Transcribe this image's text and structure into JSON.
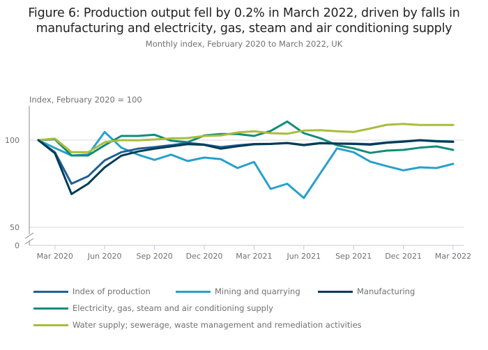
{
  "header": {
    "title_line1": "Figure 6: Production output fell by 0.2% in March 2022, driven by falls in",
    "title_line2": "manufacturing and electricity, gas, steam and air conditioning supply",
    "subtitle": "Monthly index, February 2020 to March 2022, UK"
  },
  "chart_data": {
    "type": "line",
    "title": "Figure 6: Production output fell by 0.2% in March 2022, driven by falls in manufacturing and electricity, gas, steam and air conditioning supply",
    "subtitle": "Monthly index, February 2020 to March 2022, UK",
    "ylabel": "Index, February 2020 = 100",
    "xlabel": "",
    "ylim": [
      0,
      120
    ],
    "y_axis_break": [
      0,
      50
    ],
    "yticks": [
      0,
      50,
      100
    ],
    "ytick_labels": [
      "0",
      "50",
      "100"
    ],
    "grid": true,
    "legend_position": "bottom",
    "x": [
      "Feb 2020",
      "Mar 2020",
      "Apr 2020",
      "May 2020",
      "Jun 2020",
      "Jul 2020",
      "Aug 2020",
      "Sep 2020",
      "Oct 2020",
      "Nov 2020",
      "Dec 2020",
      "Jan 2021",
      "Feb 2021",
      "Mar 2021",
      "Apr 2021",
      "May 2021",
      "Jun 2021",
      "Jul 2021",
      "Aug 2021",
      "Sep 2021",
      "Oct 2021",
      "Nov 2021",
      "Dec 2021",
      "Jan 2022",
      "Feb 2022",
      "Mar 2022"
    ],
    "xtick_labels": [
      "Mar 2020",
      "Jun 2020",
      "Sep 2020",
      "Dec 2020",
      "Mar 2021",
      "Jun 2021",
      "Sep 2021",
      "Dec 2021",
      "Mar 2022"
    ],
    "xtick_indices": [
      1,
      4,
      7,
      10,
      13,
      16,
      19,
      22,
      25
    ],
    "series": [
      {
        "name": "Index of production",
        "color": "#206095",
        "values": [
          100,
          93.0,
          75.0,
          79.3,
          88.4,
          93.1,
          95.1,
          96.0,
          97.1,
          98.4,
          97.5,
          96.0,
          97.0,
          97.8,
          97.9,
          98.4,
          97.3,
          98.4,
          98.1,
          98.0,
          97.7,
          98.7,
          99.3,
          100.0,
          99.5,
          99.2
        ]
      },
      {
        "name": "Mining and quarrying",
        "color": "#27a0cc",
        "values": [
          100,
          95.5,
          91.2,
          91.7,
          104.7,
          95.7,
          91.7,
          88.7,
          91.7,
          88.0,
          90.0,
          89.1,
          84.0,
          87.5,
          72.0,
          75.0,
          66.8,
          81.1,
          95.3,
          93.1,
          87.7,
          85.1,
          82.7,
          84.4,
          84.0,
          86.4
        ]
      },
      {
        "name": "Manufacturing",
        "color": "#003c57",
        "values": [
          100,
          92.5,
          69.1,
          75.0,
          84.4,
          91.1,
          93.5,
          95.1,
          96.4,
          97.7,
          97.3,
          95.1,
          96.5,
          97.6,
          97.8,
          98.3,
          97.1,
          98.2,
          98.0,
          97.8,
          97.4,
          98.5,
          99.1,
          99.9,
          99.3,
          99.0
        ]
      },
      {
        "name": "Electricity, gas, steam and air conditioning supply",
        "color": "#118c7b",
        "values": [
          100,
          100.5,
          91.2,
          91.2,
          97.1,
          102.4,
          102.4,
          103.1,
          99.7,
          98.8,
          102.7,
          103.5,
          103.5,
          102.4,
          105.3,
          110.7,
          104.0,
          101.1,
          97.1,
          95.3,
          92.7,
          94.0,
          94.4,
          95.7,
          96.4,
          94.4
        ]
      },
      {
        "name": "Water supply; sewerage, waste management and remediation activities",
        "color": "#a8bd3a",
        "values": [
          100,
          100.9,
          93.1,
          93.1,
          98.8,
          100.0,
          99.9,
          100.4,
          101.0,
          101.2,
          102.4,
          102.7,
          104.4,
          105.1,
          104.0,
          103.7,
          105.5,
          105.7,
          105.1,
          104.7,
          106.7,
          108.8,
          109.3,
          108.7,
          108.7,
          108.7
        ]
      }
    ]
  },
  "legend": {
    "items": [
      {
        "label": "Index of production",
        "color": "#206095"
      },
      {
        "label": "Mining and quarrying",
        "color": "#27a0cc"
      },
      {
        "label": "Manufacturing",
        "color": "#003c57"
      },
      {
        "label": "Electricity, gas, steam and air conditioning supply",
        "color": "#118c7b"
      },
      {
        "label": "Water supply; sewerage, waste management and remediation activities",
        "color": "#a8bd3a"
      }
    ]
  }
}
